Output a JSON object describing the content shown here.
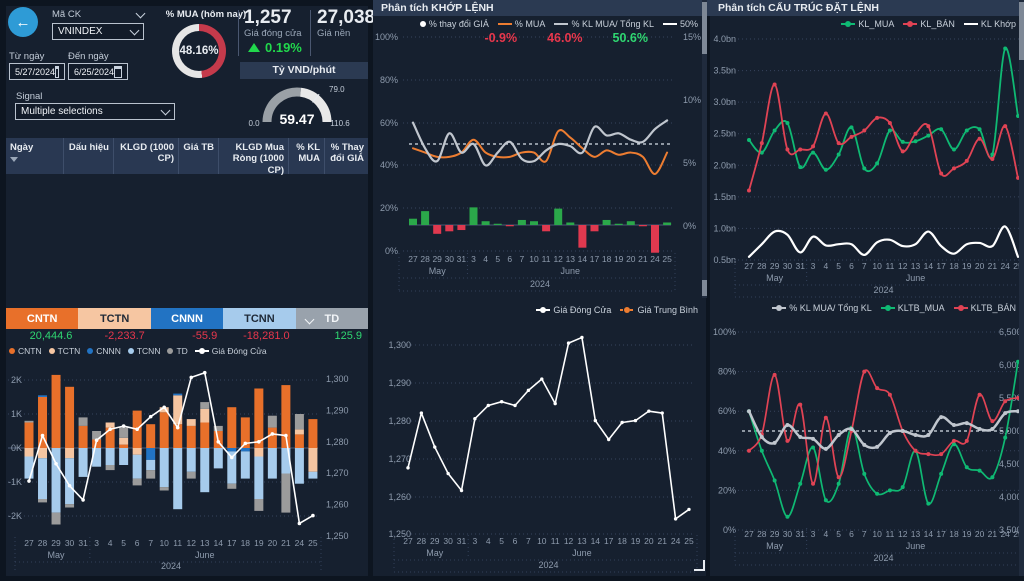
{
  "app": {
    "accent_blue": "#2E9BD6",
    "bg": "#0D1520",
    "panel": "#16202F",
    "header_strip": "#2B3A52",
    "green": "#2FD671",
    "red": "#E8374C",
    "orange": "#ED7D31",
    "gray_line": "#C0C6CE"
  },
  "left": {
    "symbol_label": "Mã CK",
    "symbol_value": "VNINDEX",
    "from_label": "Từ ngày",
    "to_label": "Đến ngày",
    "from_value": "5/27/2024",
    "to_value": "6/25/2024",
    "signal_label": "Signal",
    "signal_value": "Multiple selections",
    "donut": {
      "title": "% MUA (hôm nay)",
      "value": "48.16%",
      "pct": 48.16
    },
    "close": {
      "value": "1,257",
      "label": "Giá đóng cửa"
    },
    "base": {
      "value": "27,038",
      "label": "Giá nền"
    },
    "change": "0.19%",
    "speed": {
      "title": "Tỷ VND/phút",
      "min": "0.0",
      "max": "110.6",
      "target": "79.0",
      "value": "59.47"
    },
    "table_headers": [
      "Ngày",
      "Dấu hiệu",
      "KLGD (1000 CP)",
      "Giá TB",
      "KLGD Mua Ròng (1000 CP)",
      "% KL MUA",
      "% Thay đổi GIÁ"
    ],
    "cards": [
      {
        "label": "CNTN",
        "value": "20,444.6",
        "bg": "#E8702A",
        "value_color": "#2FD671"
      },
      {
        "label": "TCTN",
        "value": "-2,233.7",
        "bg": "#F6C6A2",
        "value_color": "#E8374C"
      },
      {
        "label": "CNNN",
        "value": "-55.9",
        "bg": "#2273C3",
        "value_color": "#E8374C"
      },
      {
        "label": "TCNN",
        "value": "-18,281.0",
        "bg": "#A6CBEC",
        "value_color": "#E8374C"
      },
      {
        "label": "TD",
        "value": "125.9",
        "bg": "#99A2AC",
        "value_color": "#2FD671"
      }
    ],
    "legend": [
      "CNTN",
      "TCTN",
      "CNNN",
      "TCNN",
      "TD",
      "Giá Đóng Cửa"
    ]
  },
  "middle": {
    "title": "Phân tích KHỚP LỆNH",
    "legend": [
      "% thay đổi GIÁ",
      "% MUA",
      "% KL MUA/ Tổng KL",
      "50%"
    ],
    "values": [
      "-0.9%",
      "46.0%",
      "50.6%"
    ],
    "price_legend": [
      "Giá Đóng Cửa",
      "Giá Trung Bình"
    ]
  },
  "right": {
    "title": "Phân tích CẤU TRÚC ĐẶT LỆNH",
    "legend_top": [
      "KL_MUA",
      "KL_BÁN",
      "KL Khớp"
    ],
    "legend_bottom": [
      "% KL MUA/ Tổng KL",
      "KLTB_MUA",
      "KLTB_BÁN"
    ]
  },
  "chart_data": [
    {
      "id": "net-flow",
      "type": "bar",
      "categories": [
        "27",
        "28",
        "29",
        "30",
        "31",
        "3",
        "4",
        "5",
        "6",
        "7",
        "10",
        "11",
        "12",
        "13",
        "14",
        "17",
        "18",
        "19",
        "20",
        "21",
        "24",
        "25"
      ],
      "months": [
        "May",
        "June"
      ],
      "year": "2024",
      "y_ticks_left": [
        "2K",
        "1K",
        "0K",
        "-1K",
        "-2K"
      ],
      "y_ticks_right": [
        "1,300",
        "1,290",
        "1,280",
        "1,270",
        "1,260",
        "1,250"
      ],
      "ylim_left_thousands": [
        -2,
        2
      ],
      "ylim_right": [
        1250,
        1300
      ],
      "series": [
        {
          "name": "CNTN",
          "color": "#E8702A",
          "values": [
            0.75,
            1.5,
            2.15,
            1.8,
            0.65,
            0.25,
            0.6,
            0.1,
            1.1,
            0.7,
            1.05,
            0.7,
            0.65,
            0.75,
            0.5,
            1.2,
            0.9,
            1.75,
            0.6,
            1.85,
            0.4,
            0.85
          ]
        },
        {
          "name": "TCTN",
          "color": "#F5C5A1",
          "values": [
            -0.25,
            -0.3,
            0,
            -0.3,
            0,
            0,
            0.15,
            0.2,
            -0.2,
            0,
            0.15,
            0.85,
            0.2,
            0.4,
            0,
            0,
            0,
            -0.25,
            0,
            0,
            0.15,
            -0.7
          ]
        },
        {
          "name": "CNNN",
          "color": "#2273C3",
          "values": [
            0,
            0.05,
            0,
            0,
            0,
            0,
            0,
            0,
            0,
            -0.35,
            0,
            0.05,
            0,
            0,
            0,
            -0.1,
            -0.1,
            0,
            0,
            0,
            0,
            0
          ]
        },
        {
          "name": "TCNN",
          "color": "#A6CBEC",
          "values": [
            -0.65,
            -1.2,
            -1.9,
            -1.35,
            -0.85,
            -0.55,
            -0.5,
            -0.5,
            -0.7,
            -0.3,
            -1.15,
            -1.8,
            -0.7,
            -1.3,
            -0.6,
            -0.95,
            -0.8,
            -1.25,
            -0.9,
            -0.75,
            -1.05,
            -0.2
          ]
        },
        {
          "name": "TD",
          "color": "#9B9B9B",
          "values": [
            0.05,
            -0.1,
            -0.35,
            -0.1,
            0.25,
            0.25,
            -0.15,
            0.3,
            -0.2,
            -0.25,
            -0.1,
            0,
            -0.2,
            0.2,
            0.15,
            -0.15,
            0,
            -0.35,
            0.35,
            -1.15,
            0.45,
            0
          ]
        },
        {
          "name": "Giá Đóng Cửa",
          "type": "line",
          "axis": "right",
          "color": "#FFFFFF",
          "values": [
            1267.5,
            1282,
            1273,
            1266,
            1261.5,
            1280.5,
            1284,
            1285,
            1284,
            1288,
            1291,
            1284.5,
            1300.5,
            1302,
            1280,
            1275,
            1279.5,
            1280,
            1282.5,
            1282,
            1254,
            1256.5
          ]
        }
      ]
    },
    {
      "id": "matched",
      "type": "line",
      "categories": [
        "27",
        "28",
        "29",
        "30",
        "31",
        "3",
        "4",
        "5",
        "6",
        "7",
        "10",
        "11",
        "12",
        "13",
        "14",
        "17",
        "18",
        "19",
        "20",
        "21",
        "24",
        "25"
      ],
      "months": [
        "May",
        "June"
      ],
      "year": "2024",
      "y_ticks_left": [
        "100%",
        "80%",
        "60%",
        "40%",
        "20%",
        "0%"
      ],
      "y_ticks_right": [
        "15%",
        "10%",
        "5%",
        "0%"
      ],
      "ref_value": 50,
      "series": [
        {
          "name": "% MUA",
          "color": "#ED7D31",
          "axis": "left",
          "values": [
            48,
            46,
            44,
            44,
            46,
            52,
            46,
            44,
            44,
            46,
            46,
            42,
            56,
            53,
            48,
            44,
            47,
            45,
            46,
            44,
            36,
            46
          ]
        },
        {
          "name": "% KL MUA/ Tổng KL",
          "color": "#C0C6CE",
          "axis": "left",
          "values": [
            60,
            48,
            42,
            55,
            46,
            50,
            40,
            46,
            51,
            43,
            42,
            47,
            50,
            49,
            46,
            58,
            54,
            55,
            52,
            51,
            57,
            61
          ]
        },
        {
          "name": "% thay đổi GIÁ",
          "type": "bar",
          "axis": "right",
          "color_pos": "#2BA84A",
          "color_neg": "#E0394F",
          "values": [
            0.5,
            1.1,
            -0.7,
            -0.5,
            -0.4,
            1.4,
            0.3,
            0.1,
            -0.1,
            0.4,
            0.3,
            -0.5,
            1.3,
            0.2,
            -1.8,
            -0.5,
            0.4,
            0.1,
            0.3,
            -0.1,
            -2.2,
            0.2
          ]
        }
      ]
    },
    {
      "id": "price",
      "type": "line",
      "categories": [
        "27",
        "28",
        "29",
        "30",
        "31",
        "3",
        "4",
        "5",
        "6",
        "7",
        "10",
        "11",
        "12",
        "13",
        "14",
        "17",
        "18",
        "19",
        "20",
        "21",
        "24",
        "25"
      ],
      "months": [
        "May",
        "June"
      ],
      "year": "2024",
      "y_ticks": [
        "1,300",
        "1,290",
        "1,280",
        "1,270",
        "1,260",
        "1,250"
      ],
      "ylim": [
        1250,
        1300
      ],
      "series": [
        {
          "name": "Giá Đóng Cửa",
          "color": "#FFFFFF",
          "values": [
            1267.5,
            1282,
            1273,
            1266,
            1261.5,
            1280.5,
            1284,
            1285,
            1284,
            1288,
            1291,
            1284.5,
            1300.5,
            1302,
            1280,
            1275,
            1279.5,
            1280,
            1282.5,
            1282,
            1254,
            1256.5
          ]
        },
        {
          "name": "Giá Trung Bình",
          "color": "#ED7D31",
          "values": []
        }
      ]
    },
    {
      "id": "orders",
      "type": "line",
      "categories": [
        "27",
        "28",
        "29",
        "30",
        "31",
        "3",
        "4",
        "5",
        "6",
        "7",
        "10",
        "11",
        "12",
        "13",
        "14",
        "17",
        "18",
        "19",
        "20",
        "21",
        "24",
        "25"
      ],
      "months": [
        "May",
        "June"
      ],
      "year": "2024",
      "y_ticks": [
        "4.0bn",
        "3.5bn",
        "3.0bn",
        "2.5bn",
        "2.0bn",
        "1.5bn",
        "1.0bn",
        "0.5bn"
      ],
      "ylim_bn": [
        0.5,
        4.0
      ],
      "series": [
        {
          "name": "KL_MUA",
          "color": "#0FB973",
          "values": [
            2.4,
            2.2,
            2.55,
            2.67,
            1.97,
            2.2,
            1.93,
            2.17,
            2.6,
            1.95,
            2.03,
            2.55,
            2.37,
            2.38,
            2.47,
            2.57,
            2.25,
            2.55,
            2.57,
            2.17,
            3.85,
            2.78
          ]
        },
        {
          "name": "KL_BÁN",
          "color": "#E04354",
          "values": [
            1.6,
            2.35,
            3.28,
            2.25,
            2.25,
            2.3,
            2.82,
            2.35,
            2.45,
            2.55,
            2.75,
            2.67,
            2.22,
            2.5,
            2.62,
            1.87,
            1.95,
            2.07,
            2.42,
            2.1,
            2.62,
            1.8
          ]
        },
        {
          "name": "KL Khớp",
          "color": "#FFFFFF",
          "values": [
            0.55,
            0.75,
            0.95,
            0.9,
            0.62,
            0.87,
            0.73,
            0.75,
            0.75,
            0.58,
            0.78,
            0.82,
            0.72,
            0.75,
            0.95,
            0.72,
            0.6,
            0.75,
            0.77,
            0.72,
            1.03,
            0.55
          ]
        }
      ]
    },
    {
      "id": "avg-orders",
      "type": "line",
      "categories": [
        "27",
        "28",
        "29",
        "30",
        "31",
        "3",
        "4",
        "5",
        "6",
        "7",
        "10",
        "11",
        "12",
        "13",
        "14",
        "17",
        "18",
        "19",
        "20",
        "21",
        "24",
        "25"
      ],
      "months": [
        "May",
        "June"
      ],
      "year": "2024",
      "y_ticks_left": [
        "100%",
        "80%",
        "60%",
        "40%",
        "20%",
        "0%"
      ],
      "y_ticks_right": [
        "6,500",
        "6,000",
        "5,500",
        "5,000",
        "4,500",
        "4,000",
        "3,500"
      ],
      "ref_value": 50,
      "ylim_left": [
        0,
        100
      ],
      "ylim_right": [
        3500,
        6500
      ],
      "series": [
        {
          "name": "% KL MUA/ Tổng KL",
          "color": "#C0C6CE",
          "axis": "left",
          "values": [
            60,
            47,
            44,
            53,
            47,
            46,
            41,
            48,
            51,
            43,
            42,
            49,
            50,
            48,
            48,
            57,
            53,
            54,
            51,
            51,
            59,
            60
          ]
        },
        {
          "name": "KLTB_MUA",
          "color": "#0FB973",
          "axis": "right",
          "values": [
            5300,
            4700,
            4250,
            3700,
            4200,
            4750,
            3950,
            4200,
            5050,
            4350,
            4050,
            4100,
            4150,
            4700,
            3900,
            4350,
            4800,
            4450,
            4400,
            4300,
            4900,
            6050
          ]
        },
        {
          "name": "KLTB_BÁN",
          "color": "#E04354",
          "axis": "right",
          "values": [
            4700,
            4950,
            5850,
            4850,
            5400,
            4200,
            5200,
            4300,
            5000,
            5900,
            5650,
            5550,
            5000,
            4700,
            4650,
            4650,
            4850,
            4850,
            5550,
            5150,
            5450,
            5500
          ]
        }
      ]
    }
  ]
}
